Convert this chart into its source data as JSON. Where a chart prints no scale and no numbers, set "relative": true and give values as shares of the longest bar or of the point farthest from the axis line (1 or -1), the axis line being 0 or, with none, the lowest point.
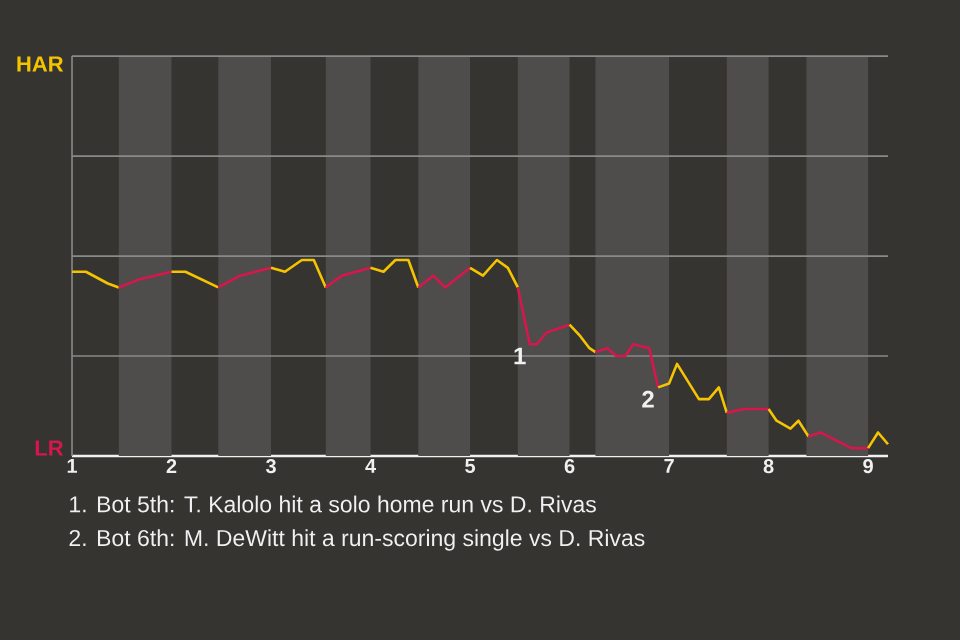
{
  "chart_data": {
    "type": "line",
    "relative": true,
    "xlim": [
      1,
      9.2
    ],
    "xticks": [
      1,
      2,
      3,
      4,
      5,
      6,
      7,
      8,
      9
    ],
    "ref_lines": [
      {
        "axis": "y",
        "value": 0.51,
        "color": "#8a8a8a"
      },
      {
        "axis": "y",
        "value": 1.02,
        "color": "#8a8a8a"
      },
      {
        "axis": "y",
        "value": 1.53,
        "color": "#8a8a8a"
      },
      {
        "axis": "y",
        "value": 2.04,
        "color": "#8a8a8a"
      }
    ],
    "series": [
      {
        "name": "HAR",
        "color": "#f5c400",
        "x": [
          1,
          1.14,
          1.36,
          1.47
        ],
        "values": [
          0.94,
          0.94,
          0.88,
          0.86
        ]
      },
      {
        "name": "LR",
        "color": "#d6164c",
        "x": [
          1.47,
          1.67,
          2
        ],
        "values": [
          0.86,
          0.9,
          0.94
        ]
      },
      {
        "color": "#f5c400",
        "x": [
          2,
          2.14,
          2.47
        ],
        "values": [
          0.94,
          0.94,
          0.86
        ]
      },
      {
        "color": "#d6164c",
        "x": [
          2.47,
          2.69,
          3
        ],
        "values": [
          0.86,
          0.92,
          0.96
        ]
      },
      {
        "color": "#f5c400",
        "x": [
          3,
          3.14,
          3.31,
          3.43,
          3.55
        ],
        "values": [
          0.96,
          0.94,
          1,
          1,
          0.86
        ]
      },
      {
        "color": "#d6164c",
        "x": [
          3.55,
          3.71,
          4
        ],
        "values": [
          0.86,
          0.92,
          0.96
        ]
      },
      {
        "color": "#f5c400",
        "x": [
          4,
          4.13,
          4.25,
          4.38,
          4.48
        ],
        "values": [
          0.96,
          0.94,
          1,
          1,
          0.86
        ]
      },
      {
        "color": "#d6164c",
        "x": [
          4.48,
          4.63,
          4.75,
          5
        ],
        "values": [
          0.86,
          0.92,
          0.86,
          0.96
        ]
      },
      {
        "color": "#f5c400",
        "x": [
          5,
          5.13,
          5.27,
          5.38,
          5.48
        ],
        "values": [
          0.96,
          0.92,
          1,
          0.96,
          0.86
        ]
      },
      {
        "color": "#d6164c",
        "x": [
          5.48,
          5.6,
          5.67,
          5.77,
          6
        ],
        "values": [
          0.86,
          0.57,
          0.57,
          0.63,
          0.67
        ]
      },
      {
        "color": "#f5c401",
        "x": [
          6,
          6.11,
          6.2,
          6.26
        ],
        "values": [
          0.67,
          0.61,
          0.55,
          0.53
        ]
      },
      {
        "color": "#d6164c",
        "x": [
          6.26,
          6.38,
          6.47,
          6.56,
          6.64,
          6.8,
          6.89
        ],
        "values": [
          0.53,
          0.55,
          0.51,
          0.51,
          0.57,
          0.55,
          0.35
        ]
      },
      {
        "color": "#f5c402",
        "x": [
          6.89,
          7,
          7.08,
          7.3,
          7.4,
          7.5,
          7.58
        ],
        "values": [
          0.35,
          0.37,
          0.47,
          0.29,
          0.29,
          0.35,
          0.22
        ]
      },
      {
        "color": "#d6164c",
        "x": [
          7.58,
          7.75,
          7.85,
          8
        ],
        "values": [
          0.22,
          0.24,
          0.24,
          0.24
        ]
      },
      {
        "color": "#f5c403",
        "x": [
          8,
          8.08,
          8.22,
          8.3,
          8.4
        ],
        "values": [
          0.24,
          0.18,
          0.14,
          0.18,
          0.1
        ]
      },
      {
        "color": "#d6164c",
        "x": [
          8.4,
          8.52,
          8.68,
          8.83,
          9
        ],
        "values": [
          0.1,
          0.12,
          0.08,
          0.04,
          0.04
        ]
      },
      {
        "color": "#f5c400",
        "x": [
          9,
          9.1,
          9.2
        ],
        "values": [
          0.04,
          0.12,
          0.06
        ]
      }
    ],
    "bands": [
      {
        "axis": "x",
        "from": 1.47,
        "to": 2,
        "color": "#4e4d4b"
      },
      {
        "axis": "x",
        "from": 2.47,
        "to": 3,
        "color": "#4e4d4b"
      },
      {
        "axis": "x",
        "from": 3.55,
        "to": 4,
        "color": "#4e4d4b"
      },
      {
        "axis": "x",
        "from": 4.48,
        "to": 5,
        "color": "#4e4d4b"
      },
      {
        "axis": "x",
        "from": 5.48,
        "to": 6,
        "color": "#4e4d4b"
      },
      {
        "axis": "x",
        "from": 6.26,
        "to": 7,
        "color": "#4e4d4b"
      },
      {
        "axis": "x",
        "from": 7.58,
        "to": 8,
        "color": "#4e4d4b"
      },
      {
        "axis": "x",
        "from": 8.38,
        "to": 9,
        "color": "#4e4d4b"
      }
    ],
    "annotations": [
      {
        "text": "1",
        "x": 5.6,
        "y": 0.57
      },
      {
        "text": "2",
        "x": 6.89,
        "y": 0.35
      },
      "1. Bot 5th: T. Kalolo hit a solo home run vs D. Rivas",
      "2. Bot 6th: M. DeWitt hit a run-scoring single vs D. Rivas"
    ]
  }
}
